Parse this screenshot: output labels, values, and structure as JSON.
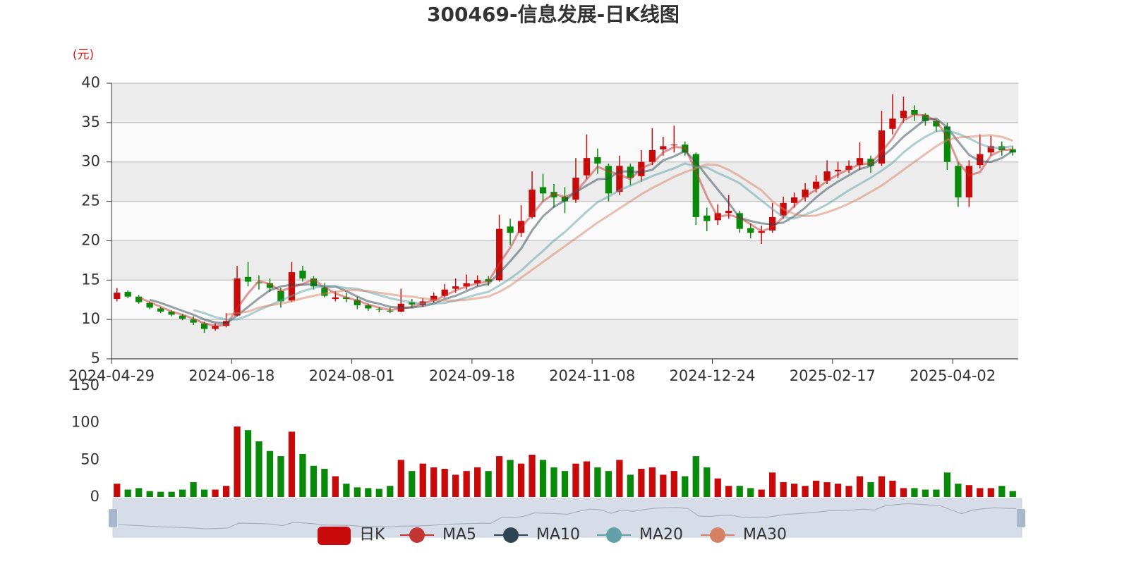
{
  "chart_data": {
    "type": "candlestick",
    "title": "300469-信息发展-日K线图",
    "y_label": "(元)",
    "candle_name": "日K",
    "up_color": "#c80a0a",
    "down_color": "#0a8a0a",
    "grid": true,
    "legend": "bottom",
    "categories": [
      "2024-04-29",
      null,
      null,
      null,
      null,
      null,
      null,
      null,
      null,
      null,
      null,
      "2024-06-18",
      null,
      null,
      null,
      null,
      null,
      null,
      null,
      null,
      null,
      null,
      "2024-08-01",
      null,
      null,
      null,
      null,
      null,
      null,
      null,
      null,
      null,
      null,
      "2024-09-18",
      null,
      null,
      null,
      null,
      null,
      null,
      null,
      null,
      null,
      null,
      "2024-11-08",
      null,
      null,
      null,
      null,
      null,
      null,
      null,
      null,
      null,
      null,
      "2024-12-24",
      null,
      null,
      null,
      null,
      null,
      null,
      null,
      null,
      null,
      null,
      "2025-02-17",
      null,
      null,
      null,
      null,
      null,
      null,
      null,
      null,
      null,
      null,
      "2025-04-02",
      null,
      null,
      null,
      null,
      null
    ],
    "ohlc": [
      [
        12.6,
        13.4,
        12.3,
        14.0
      ],
      [
        13.5,
        12.9,
        12.7,
        13.7
      ],
      [
        12.9,
        12.2,
        12.0,
        13.1
      ],
      [
        12.1,
        11.5,
        11.3,
        12.3
      ],
      [
        11.4,
        11.0,
        10.8,
        11.6
      ],
      [
        11.0,
        10.6,
        10.4,
        11.2
      ],
      [
        10.5,
        10.1,
        9.9,
        10.7
      ],
      [
        10.0,
        9.6,
        9.3,
        10.4
      ],
      [
        9.5,
        8.8,
        8.3,
        9.7
      ],
      [
        8.8,
        9.2,
        8.6,
        9.5
      ],
      [
        9.2,
        9.8,
        9.0,
        10.8
      ],
      [
        10.5,
        15.2,
        10.4,
        16.8
      ],
      [
        15.4,
        14.8,
        14.2,
        17.3
      ],
      [
        14.7,
        14.6,
        13.8,
        15.6
      ],
      [
        14.6,
        14.0,
        13.5,
        15.2
      ],
      [
        13.6,
        12.3,
        11.5,
        14.0
      ],
      [
        12.4,
        16.0,
        12.2,
        17.3
      ],
      [
        16.2,
        15.2,
        14.8,
        16.8
      ],
      [
        15.2,
        14.2,
        13.8,
        15.5
      ],
      [
        14.0,
        13.0,
        12.8,
        14.6
      ],
      [
        12.6,
        12.8,
        12.3,
        13.6
      ],
      [
        12.8,
        12.6,
        12.2,
        13.4
      ],
      [
        12.5,
        11.8,
        11.3,
        12.9
      ],
      [
        11.8,
        11.4,
        11.1,
        12.0
      ],
      [
        11.3,
        11.2,
        10.9,
        11.6
      ],
      [
        11.1,
        11.0,
        10.8,
        11.5
      ],
      [
        11.0,
        12.0,
        10.9,
        13.9
      ],
      [
        12.2,
        11.9,
        11.5,
        12.6
      ],
      [
        11.8,
        12.3,
        11.6,
        12.7
      ],
      [
        12.4,
        13.0,
        12.1,
        13.4
      ],
      [
        13.0,
        13.8,
        12.8,
        14.5
      ],
      [
        13.9,
        14.2,
        13.4,
        15.2
      ],
      [
        14.2,
        14.6,
        13.8,
        15.7
      ],
      [
        14.6,
        15.0,
        14.2,
        15.6
      ],
      [
        15.1,
        14.8,
        14.3,
        15.5
      ],
      [
        15.0,
        21.5,
        14.8,
        23.3
      ],
      [
        21.8,
        21.0,
        19.5,
        22.8
      ],
      [
        21.0,
        22.5,
        20.5,
        24.5
      ],
      [
        23.0,
        26.5,
        22.8,
        28.8
      ],
      [
        26.8,
        26.0,
        25.0,
        28.5
      ],
      [
        26.2,
        25.5,
        24.2,
        27.2
      ],
      [
        25.6,
        25.0,
        23.5,
        26.8
      ],
      [
        25.2,
        28.0,
        24.8,
        30.5
      ],
      [
        28.3,
        30.5,
        27.8,
        33.5
      ],
      [
        30.6,
        29.8,
        28.5,
        31.7
      ],
      [
        29.5,
        26.0,
        25.0,
        29.8
      ],
      [
        26.2,
        29.5,
        25.8,
        30.8
      ],
      [
        29.4,
        28.0,
        27.0,
        29.8
      ],
      [
        28.2,
        30.0,
        27.5,
        31.5
      ],
      [
        30.0,
        31.5,
        29.6,
        34.3
      ],
      [
        31.6,
        32.0,
        30.8,
        33.2
      ],
      [
        32.1,
        32.2,
        31.2,
        34.6
      ],
      [
        32.2,
        31.2,
        30.8,
        32.6
      ],
      [
        31.0,
        23.0,
        22.0,
        31.2
      ],
      [
        23.2,
        22.5,
        21.2,
        24.2
      ],
      [
        22.6,
        23.5,
        22.0,
        24.6
      ],
      [
        23.5,
        23.8,
        22.8,
        25.8
      ],
      [
        23.5,
        21.5,
        21.0,
        23.8
      ],
      [
        21.6,
        21.0,
        20.3,
        22.2
      ],
      [
        21.0,
        21.2,
        19.6,
        21.9
      ],
      [
        21.3,
        23.0,
        21.0,
        24.8
      ],
      [
        23.2,
        24.8,
        22.8,
        25.6
      ],
      [
        24.8,
        25.5,
        24.2,
        26.1
      ],
      [
        25.5,
        26.5,
        25.0,
        27.3
      ],
      [
        26.6,
        27.5,
        26.1,
        28.3
      ],
      [
        27.6,
        28.8,
        27.2,
        30.2
      ],
      [
        28.8,
        29.0,
        28.0,
        30.0
      ],
      [
        29.0,
        29.5,
        28.6,
        30.2
      ],
      [
        29.6,
        30.5,
        29.0,
        32.5
      ],
      [
        30.4,
        29.5,
        28.6,
        30.8
      ],
      [
        29.8,
        34.0,
        29.5,
        36.5
      ],
      [
        34.2,
        35.5,
        33.5,
        38.6
      ],
      [
        35.6,
        36.5,
        35.0,
        38.3
      ],
      [
        36.6,
        36.0,
        35.2,
        37.2
      ],
      [
        36.0,
        35.2,
        34.6,
        36.2
      ],
      [
        35.2,
        34.5,
        33.8,
        35.4
      ],
      [
        34.5,
        30.0,
        29.0,
        35.0
      ],
      [
        29.5,
        25.5,
        24.3,
        30.0
      ],
      [
        25.5,
        29.5,
        24.3,
        30.2
      ],
      [
        29.6,
        31.0,
        29.2,
        33.5
      ],
      [
        31.2,
        32.0,
        30.8,
        33.3
      ],
      [
        32.0,
        31.5,
        30.8,
        32.6
      ],
      [
        31.6,
        31.2,
        30.8,
        32.0
      ]
    ],
    "ylim": [
      5,
      40
    ],
    "yticks": [
      5,
      10,
      15,
      20,
      25,
      30,
      35,
      40
    ],
    "series": [
      {
        "name": "MA5",
        "color": "#c23531",
        "values": [
          null,
          null,
          12.8,
          12.2,
          11.6,
          11.0,
          10.6,
          10.1,
          9.5,
          9.2,
          9.3,
          11.4,
          13.3,
          14.9,
          14.5,
          13.6,
          14.1,
          14.5,
          15.1,
          14.1,
          13.3,
          12.8,
          12.4,
          11.9,
          11.5,
          11.2,
          11.4,
          11.6,
          12.1,
          12.4,
          13.0,
          13.7,
          14.2,
          14.6,
          14.8,
          17.1,
          19.1,
          21.7,
          23.3,
          25.0,
          26.0,
          25.5,
          26.2,
          27.8,
          29.4,
          28.8,
          28.4,
          27.8,
          29.2,
          29.8,
          31.2,
          31.9,
          31.8,
          28.8,
          25.6,
          23.0,
          23.3,
          22.9,
          22.1,
          21.2,
          21.7,
          23.0,
          24.4,
          25.6,
          26.5,
          27.6,
          28.4,
          29.1,
          29.7,
          29.8,
          31.3,
          33.0,
          35.3,
          36.0,
          35.9,
          35.2,
          33.2,
          30.0,
          28.3,
          28.7,
          30.8,
          31.5,
          31.6
        ]
      },
      {
        "name": "MA10",
        "color": "#2f4554",
        "values": [
          null,
          null,
          null,
          12.5,
          12.1,
          11.6,
          11.1,
          10.6,
          10.0,
          9.6,
          9.5,
          10.5,
          11.6,
          12.7,
          13.7,
          14.2,
          14.4,
          14.4,
          14.5,
          14.1,
          14.2,
          13.6,
          12.9,
          12.3,
          12.0,
          11.6,
          11.5,
          11.5,
          11.7,
          12.0,
          12.6,
          13.0,
          13.6,
          14.2,
          14.5,
          15.9,
          17.4,
          19.0,
          21.3,
          23.1,
          24.3,
          25.1,
          26.2,
          27.0,
          27.8,
          27.9,
          28.8,
          28.8,
          28.7,
          29.0,
          30.2,
          30.7,
          31.4,
          30.0,
          28.2,
          26.5,
          24.8,
          22.9,
          22.5,
          22.2,
          22.1,
          22.3,
          23.1,
          24.2,
          25.5,
          26.6,
          27.5,
          28.3,
          29.1,
          29.5,
          30.6,
          31.8,
          33.2,
          34.3,
          35.4,
          35.5,
          34.4,
          32.6,
          30.9,
          30.1,
          30.0,
          30.5,
          31.4
        ]
      },
      {
        "name": "MA20",
        "color": "#61a0a8",
        "values": [
          null,
          null,
          null,
          null,
          null,
          null,
          null,
          11.2,
          10.8,
          10.3,
          10.0,
          10.0,
          10.5,
          11.2,
          11.8,
          12.4,
          13.0,
          13.6,
          14.0,
          14.3,
          14.2,
          14.0,
          13.9,
          13.5,
          13.1,
          12.7,
          12.4,
          12.2,
          12.0,
          12.0,
          12.1,
          12.4,
          12.8,
          13.2,
          13.5,
          14.3,
          15.2,
          16.2,
          17.5,
          18.7,
          20.0,
          21.1,
          22.4,
          23.7,
          24.9,
          25.6,
          26.4,
          27.0,
          27.6,
          28.2,
          28.7,
          29.2,
          29.8,
          29.4,
          29.3,
          28.6,
          28.0,
          27.3,
          26.2,
          25.1,
          24.0,
          23.0,
          22.8,
          23.3,
          23.9,
          24.6,
          25.5,
          26.4,
          27.2,
          28.0,
          28.9,
          29.9,
          31.2,
          32.3,
          33.2,
          33.9,
          34.0,
          33.6,
          33.0,
          32.3,
          31.8,
          31.8,
          32.0
        ]
      },
      {
        "name": "MA30",
        "color": "#d48265",
        "values": [
          null,
          null,
          null,
          null,
          null,
          null,
          null,
          null,
          null,
          null,
          10.6,
          10.8,
          11.0,
          11.5,
          11.8,
          12.0,
          12.3,
          12.7,
          13.0,
          13.3,
          13.5,
          13.7,
          13.7,
          13.6,
          13.4,
          13.2,
          13.0,
          12.9,
          12.7,
          12.5,
          12.4,
          12.4,
          12.5,
          12.7,
          12.9,
          13.5,
          14.3,
          15.3,
          16.3,
          17.3,
          18.3,
          19.3,
          20.3,
          21.3,
          22.3,
          23.2,
          24.1,
          25.0,
          25.9,
          26.7,
          27.4,
          28.1,
          28.7,
          29.2,
          29.7,
          29.6,
          29.0,
          28.2,
          27.3,
          26.4,
          25.0,
          24.0,
          23.4,
          23.1,
          23.2,
          23.6,
          24.1,
          24.7,
          25.4,
          26.2,
          27.0,
          28.0,
          29.0,
          30.0,
          31.0,
          32.0,
          32.8,
          33.1,
          33.2,
          33.3,
          33.4,
          33.2,
          32.7
        ]
      }
    ],
    "volume": {
      "values": [
        18,
        10,
        12,
        8,
        7,
        7,
        10,
        20,
        10,
        10,
        15,
        95,
        90,
        75,
        62,
        55,
        88,
        58,
        42,
        38,
        28,
        18,
        13,
        12,
        11,
        15,
        50,
        35,
        45,
        40,
        38,
        30,
        35,
        40,
        35,
        55,
        50,
        45,
        57,
        50,
        40,
        35,
        45,
        48,
        40,
        35,
        50,
        30,
        38,
        40,
        30,
        35,
        28,
        55,
        40,
        25,
        15,
        15,
        12,
        10,
        33,
        20,
        18,
        15,
        22,
        20,
        18,
        15,
        28,
        20,
        28,
        22,
        12,
        12,
        10,
        10,
        33,
        18,
        16,
        12,
        12,
        15,
        8
      ],
      "ylim": [
        0,
        150
      ],
      "yticks": [
        0,
        50,
        100,
        150
      ]
    }
  }
}
